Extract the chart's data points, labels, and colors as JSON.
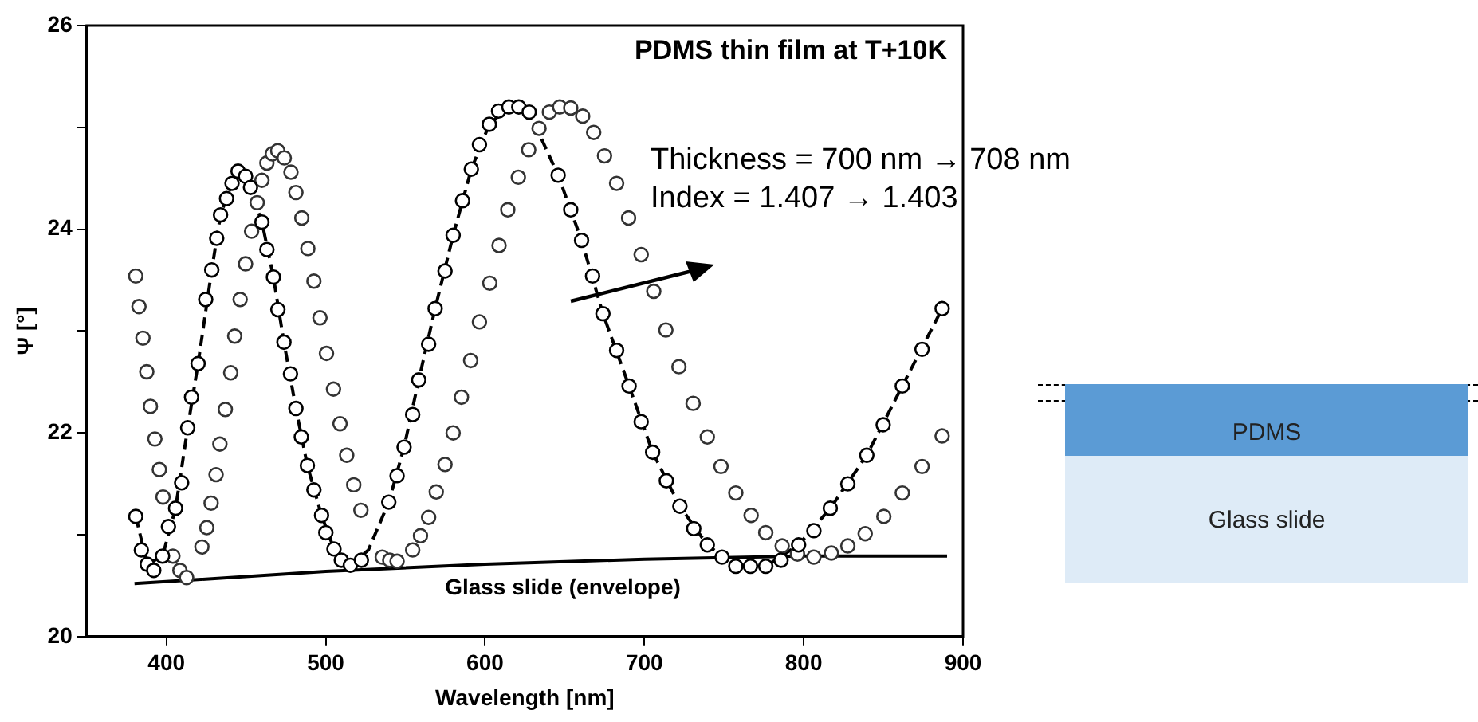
{
  "chart_data": {
    "type": "scatter",
    "title": "PDMS thin film at T+10K",
    "xlabel": "Wavelength [nm]",
    "ylabel": "Ψ [°]",
    "xlim": [
      350,
      900
    ],
    "xticks": [
      400,
      500,
      600,
      700,
      800,
      900
    ],
    "ylim": [
      20,
      26
    ],
    "yticks": [
      20,
      {
        "value": 21,
        "label": null
      },
      22,
      {
        "value": 23,
        "label": null
      },
      24,
      {
        "value": 25,
        "label": null
      },
      26
    ],
    "grid": false,
    "legend": false,
    "series": [
      {
        "type": "scatter",
        "marker": "circle",
        "color": "#000000",
        "x": [
          380.8,
          384.3,
          388,
          392.1,
          397.6,
          401.3,
          405.8,
          409.6,
          413.4,
          415.8,
          419.9,
          424.7,
          428.5,
          431.6,
          434,
          437.8,
          441.2,
          445,
          449.7,
          452.8,
          460,
          463.1,
          467.2,
          470,
          473.8,
          477.9,
          481.3,
          484.7,
          488.5,
          492.6,
          497.4,
          500.1,
          505.2,
          509.8,
          515.5,
          522.4,
          539.6,
          544.8,
          549.2,
          554.6,
          558.4,
          564.6,
          568.7,
          574.9,
          580,
          585.9,
          591.4,
          596.5,
          602.7,
          608.5,
          615,
          621.2,
          627.7,
          645.9,
          653.8,
          660.6,
          667.5,
          674,
          682.6,
          690.4,
          698,
          705.2,
          713.8,
          722.3,
          731,
          739.5,
          748.8,
          757.4,
          766.6,
          776.2,
          785.8,
          796.8,
          806.4,
          816.7,
          827.7,
          839.6,
          849.9,
          861.9,
          874.3,
          886.9
        ],
        "values": [
          21.18,
          20.85,
          20.71,
          20.65,
          20.79,
          21.08,
          21.26,
          21.51,
          22.05,
          22.35,
          22.68,
          23.31,
          23.6,
          23.91,
          24.14,
          24.3,
          24.45,
          24.57,
          24.52,
          24.41,
          24.07,
          23.8,
          23.53,
          23.21,
          22.89,
          22.58,
          22.24,
          21.96,
          21.68,
          21.44,
          21.19,
          21.02,
          20.86,
          20.75,
          20.7,
          20.75,
          21.32,
          21.58,
          21.86,
          22.18,
          22.52,
          22.87,
          23.22,
          23.59,
          23.94,
          24.28,
          24.59,
          24.83,
          25.03,
          25.16,
          25.2,
          25.2,
          25.15,
          24.53,
          24.19,
          23.89,
          23.54,
          23.17,
          22.81,
          22.46,
          22.11,
          21.81,
          21.53,
          21.28,
          21.06,
          20.9,
          20.78,
          20.69,
          20.69,
          20.69,
          20.75,
          20.9,
          21.04,
          21.26,
          21.5,
          21.78,
          22.08,
          22.46,
          22.82,
          23.22
        ]
      },
      {
        "type": "scatter",
        "marker": "circle",
        "color": "#333333",
        "x": [
          380.8,
          382.8,
          385.3,
          387.7,
          390,
          392.8,
          395.6,
          397.9,
          404.1,
          408.5,
          412.7,
          422.3,
          425.4,
          428.1,
          431.2,
          433.6,
          437,
          440.4,
          442.9,
          446.3,
          449.7,
          453.5,
          457,
          460,
          463.1,
          466.5,
          469.9,
          474,
          478.2,
          481.3,
          485,
          488.8,
          492.6,
          496.4,
          500.5,
          504.9,
          509,
          513.2,
          517.6,
          522.1,
          535.5,
          540.2,
          544.8,
          554.6,
          559.5,
          564.6,
          569.4,
          574.9,
          580,
          585.2,
          591,
          596.5,
          603,
          608.8,
          614.3,
          620.9,
          627.4,
          633.9,
          640.4,
          646.9,
          653.8,
          661.3,
          668.2,
          675,
          682.6,
          690.1,
          698,
          705.9,
          713.5,
          721.7,
          730.6,
          739.5,
          748.1,
          757.4,
          767,
          776.2,
          786.5,
          796.1,
          806.4,
          817.4,
          827.7,
          838.6,
          850.3,
          861.9,
          874.3,
          886.9
        ],
        "values": [
          23.54,
          23.24,
          22.93,
          22.6,
          22.26,
          21.94,
          21.64,
          21.37,
          20.79,
          20.65,
          20.58,
          20.88,
          21.07,
          21.31,
          21.59,
          21.89,
          22.23,
          22.59,
          22.95,
          23.31,
          23.66,
          23.98,
          24.26,
          24.48,
          24.65,
          24.74,
          24.77,
          24.7,
          24.56,
          24.36,
          24.11,
          23.81,
          23.49,
          23.13,
          22.78,
          22.43,
          22.09,
          21.78,
          21.49,
          21.24,
          20.78,
          20.75,
          20.74,
          20.85,
          20.99,
          21.17,
          21.42,
          21.69,
          22,
          22.35,
          22.71,
          23.09,
          23.47,
          23.84,
          24.19,
          24.51,
          24.78,
          24.99,
          25.15,
          25.2,
          25.19,
          25.11,
          24.95,
          24.72,
          24.45,
          24.11,
          23.75,
          23.39,
          23.01,
          22.65,
          22.29,
          21.96,
          21.67,
          21.41,
          21.19,
          21.02,
          20.89,
          20.81,
          20.78,
          20.82,
          20.89,
          21.01,
          21.18,
          21.41,
          21.67,
          21.97
        ]
      },
      {
        "type": "line",
        "marker": "none",
        "color": "#000000",
        "line_style": "dashed",
        "x": [
          380.8,
          388,
          397.6,
          405.8,
          413.4,
          419.9,
          428.5,
          434,
          441.2,
          445,
          449.7,
          460,
          467.2,
          473.8,
          481.3,
          488.5,
          497.4,
          505.2,
          515.5,
          526.8,
          539.6,
          549.2,
          558.4,
          568.7,
          580,
          591.4,
          602.7,
          615,
          627.7,
          645.9,
          660.6,
          674,
          690.4,
          705.2,
          722.3,
          739.5,
          757.4,
          776.2,
          796.8,
          816.7,
          839.6,
          861.9,
          886.9
        ],
        "values": [
          21.18,
          20.71,
          20.79,
          21.26,
          22.05,
          22.68,
          23.6,
          24.14,
          24.45,
          24.57,
          24.52,
          24.07,
          23.53,
          22.89,
          22.24,
          21.68,
          21.19,
          20.86,
          20.7,
          20.85,
          21.32,
          21.86,
          22.52,
          23.22,
          23.94,
          24.59,
          25.03,
          25.2,
          25.15,
          24.53,
          23.89,
          23.17,
          22.46,
          21.81,
          21.28,
          20.9,
          20.69,
          20.69,
          20.9,
          21.26,
          21.78,
          22.46,
          23.22
        ]
      },
      {
        "type": "line",
        "marker": "none",
        "color": "#000000",
        "line_style": "solid",
        "x": [
          380,
          500,
          600,
          700,
          800,
          890
        ],
        "values": [
          20.52,
          20.64,
          20.71,
          20.76,
          20.79,
          20.79
        ]
      }
    ],
    "annotations": [
      "Glass slide (envelope)",
      "Thickness = 700 nm → 708 nm",
      "Index = 1.407 → 1.403",
      "PDMS",
      "Glass slide"
    ]
  }
}
